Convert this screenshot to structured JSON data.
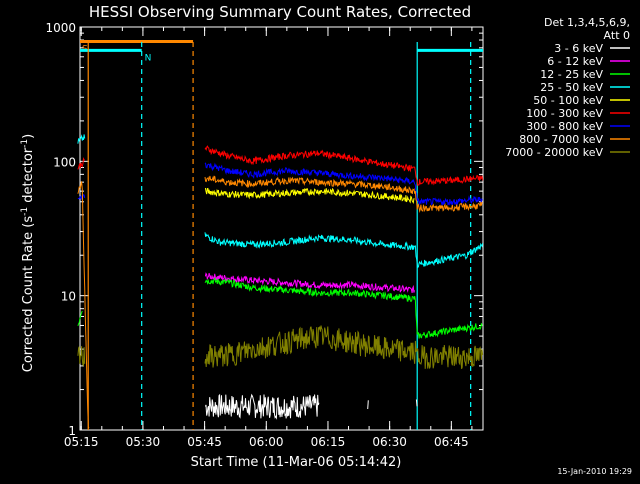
{
  "chart_data": {
    "type": "line",
    "title": "HESSI Observing Summary Count Rates, Corrected",
    "xlabel": "Start Time (11-Mar-06 05:14:42)",
    "ylabel_main": "Corrected Count Rate (s",
    "ylabel_sup1": "-1",
    "ylabel_mid": " detector",
    "ylabel_sup2": "-1",
    "ylabel_end": ")",
    "yscale": "log",
    "ylim": [
      1,
      1000
    ],
    "xlim_minutes": [
      0,
      98
    ],
    "x_units": "minutes since 05:14:42",
    "xticks": [
      {
        "label": "05:15",
        "min": 0.3
      },
      {
        "label": "05:30",
        "min": 15.3
      },
      {
        "label": "05:45",
        "min": 30.3
      },
      {
        "label": "06:00",
        "min": 45.3
      },
      {
        "label": "06:15",
        "min": 60.3
      },
      {
        "label": "06:30",
        "min": 75.3
      },
      {
        "label": "06:45",
        "min": 90.3
      }
    ],
    "yticks": [
      {
        "label": "1",
        "value": 1
      },
      {
        "label": "10",
        "value": 10
      },
      {
        "label": "100",
        "value": 100
      },
      {
        "label": "1000",
        "value": 1000
      }
    ],
    "legend": {
      "header1": "Det 1,3,4,5,6,9,",
      "header2": "Att 0",
      "placement": "right"
    },
    "series": [
      {
        "name": "3 - 6 keV",
        "color": "#ffffff",
        "x": [
          30.5,
          38,
          48,
          58,
          70,
          82
        ],
        "y": [
          1.5,
          1.5,
          1.5,
          1.5,
          1.5,
          1.5
        ]
      },
      {
        "name": "6 - 12 keV",
        "color": "#ff00ff",
        "x": [
          30.5,
          36,
          42,
          50,
          58,
          66,
          74,
          81.5
        ],
        "y": [
          14,
          13.5,
          13,
          12.5,
          12,
          12,
          11.5,
          11
        ]
      },
      {
        "name": "12 - 25 keV",
        "color": "#00ff00",
        "x": [
          -0.5,
          0.5,
          30.5,
          36,
          42,
          50,
          58,
          66,
          74,
          81.5,
          82,
          90,
          98
        ],
        "y": [
          6,
          8,
          13,
          12.5,
          11.5,
          11,
          10.5,
          10.5,
          10,
          9.5,
          5,
          5.5,
          6
        ]
      },
      {
        "name": "25 - 50 keV",
        "color": "#00ffff",
        "x": [
          -0.5,
          1,
          30.5,
          34,
          42,
          50,
          58,
          66,
          74,
          81.5,
          82,
          86,
          94,
          98
        ],
        "y": [
          140,
          150,
          28,
          25,
          24,
          25,
          27,
          26,
          24,
          23,
          17,
          18,
          20,
          24
        ]
      },
      {
        "name": "50 - 100 keV",
        "color": "#ffff00",
        "x": [
          30.5,
          36,
          42,
          50,
          58,
          66,
          74,
          81.5
        ],
        "y": [
          60,
          57,
          56,
          58,
          60,
          58,
          55,
          52
        ]
      },
      {
        "name": "100 - 300 keV",
        "color": "#ff0000",
        "x": [
          -0.5,
          1,
          30.5,
          36,
          42,
          50,
          58,
          66,
          74,
          81.5,
          82,
          90,
          98
        ],
        "y": [
          90,
          100,
          125,
          110,
          100,
          110,
          115,
          105,
          95,
          88,
          70,
          72,
          75
        ]
      },
      {
        "name": "300 - 800 keV",
        "color": "#0000ff",
        "x": [
          -0.5,
          1,
          30.5,
          36,
          42,
          50,
          58,
          66,
          74,
          81.5,
          82,
          90,
          98
        ],
        "y": [
          52,
          55,
          95,
          85,
          80,
          85,
          82,
          78,
          75,
          70,
          50,
          50,
          52
        ]
      },
      {
        "name": "800 - 7000 keV",
        "color": "#ff8800",
        "x": [
          -0.5,
          0.5,
          2,
          30.5,
          36,
          42,
          50,
          58,
          66,
          74,
          81.5,
          82,
          90,
          98
        ],
        "y": [
          60,
          70,
          1,
          75,
          70,
          68,
          72,
          70,
          68,
          65,
          60,
          45,
          45,
          47
        ]
      },
      {
        "name": "7000 - 20000 keV",
        "color": "#808000",
        "x": [
          -0.5,
          1,
          30.5,
          36,
          42,
          50,
          58,
          66,
          74,
          81.5,
          82,
          90,
          98
        ],
        "y": [
          3.5,
          3.5,
          3.5,
          3.6,
          4,
          4.5,
          5,
          4.5,
          4,
          3.8,
          3.5,
          3.5,
          3.5
        ]
      }
    ],
    "flag_bars": [
      {
        "label": "S",
        "color": "#ff8800",
        "start_min": -2,
        "end_min": 27.5,
        "level": 780
      },
      {
        "label": "N",
        "color": "#00ffff",
        "start_min": -2,
        "end_min": 15,
        "level": 670
      },
      {
        "label": "",
        "color": "#00ffff",
        "start_min": 82,
        "end_min": 98,
        "level": 670
      }
    ],
    "vlines": [
      {
        "min": 15,
        "color": "#00ffff",
        "style": "dashed"
      },
      {
        "min": 27.5,
        "color": "#ff8800",
        "style": "dashed"
      },
      {
        "min": 2,
        "color": "#ff8800",
        "style": "solid"
      },
      {
        "min": 82,
        "color": "#00ffff",
        "style": "solid"
      },
      {
        "min": 95,
        "color": "#00ffff",
        "style": "dashed"
      }
    ],
    "grid": false,
    "stamp": "15-Jan-2010 19:29"
  }
}
